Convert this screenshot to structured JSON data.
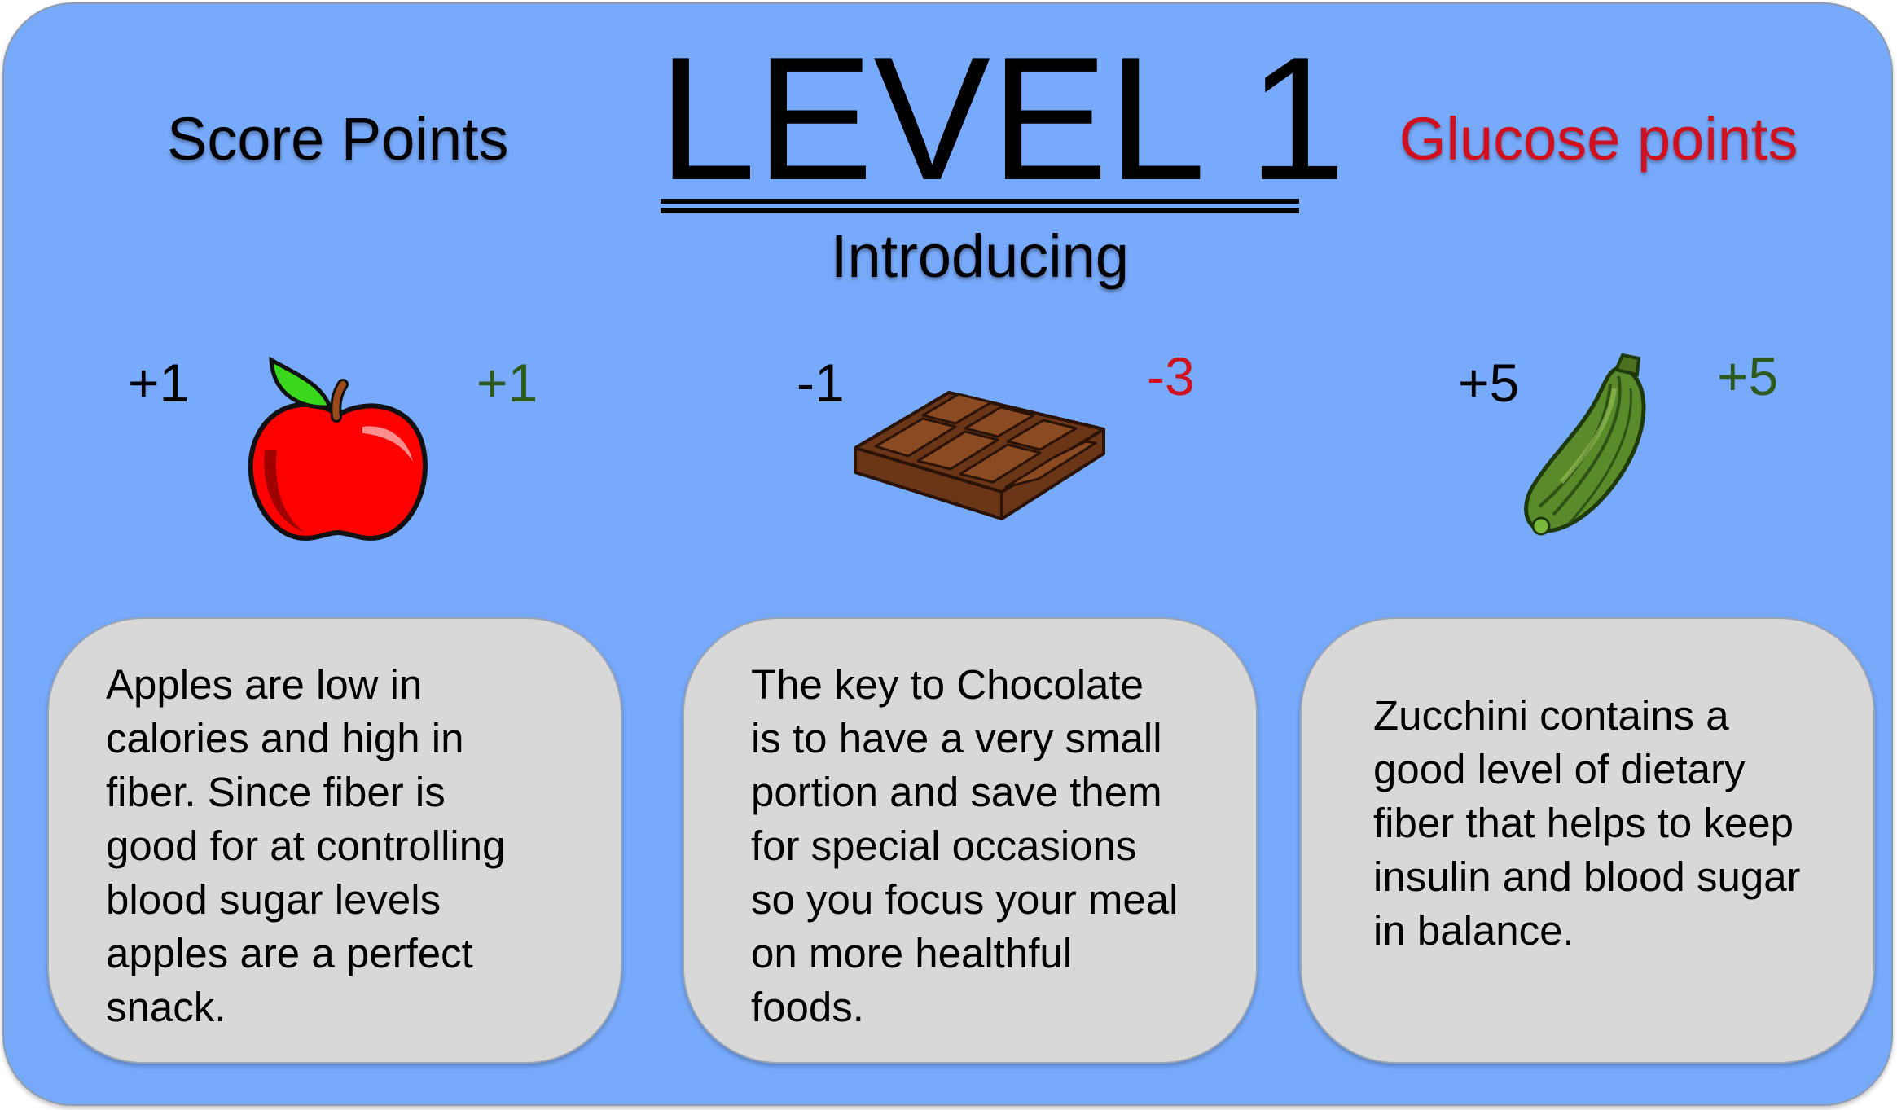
{
  "header": {
    "score_label": "Score Points",
    "title": "LEVEL 1",
    "subtitle": "Introducing",
    "glucose_label": "Glucose points"
  },
  "colors": {
    "background": "#78aafb",
    "card": "#d8d8d8",
    "glucose_red": "#d0101e",
    "positive_green": "#2d5a1c",
    "text": "#000000"
  },
  "foods": [
    {
      "name": "Apple",
      "icon": "apple-icon",
      "score": "+1",
      "glucose": "+1",
      "glucose_color": "#2d5a1c",
      "description": "Apples are low in\ncalories and high in\nfiber. Since fiber is\ngood for at controlling\nblood sugar levels\napples are a perfect\nsnack."
    },
    {
      "name": "Chocolate",
      "icon": "chocolate-bar-icon",
      "score": "-1",
      "glucose": "-3",
      "glucose_color": "#d0101e",
      "description": "The key to Chocolate\nis to have a very small\nportion and save them\nfor special occasions\nso you focus your meal\non more healthful\nfoods."
    },
    {
      "name": "Zucchini",
      "icon": "zucchini-icon",
      "score": "+5",
      "glucose": "+5",
      "glucose_color": "#2d5a1c",
      "description": "Zucchini contains a\ngood level of dietary\nfiber that helps to keep\ninsulin and blood sugar\nin balance."
    }
  ]
}
